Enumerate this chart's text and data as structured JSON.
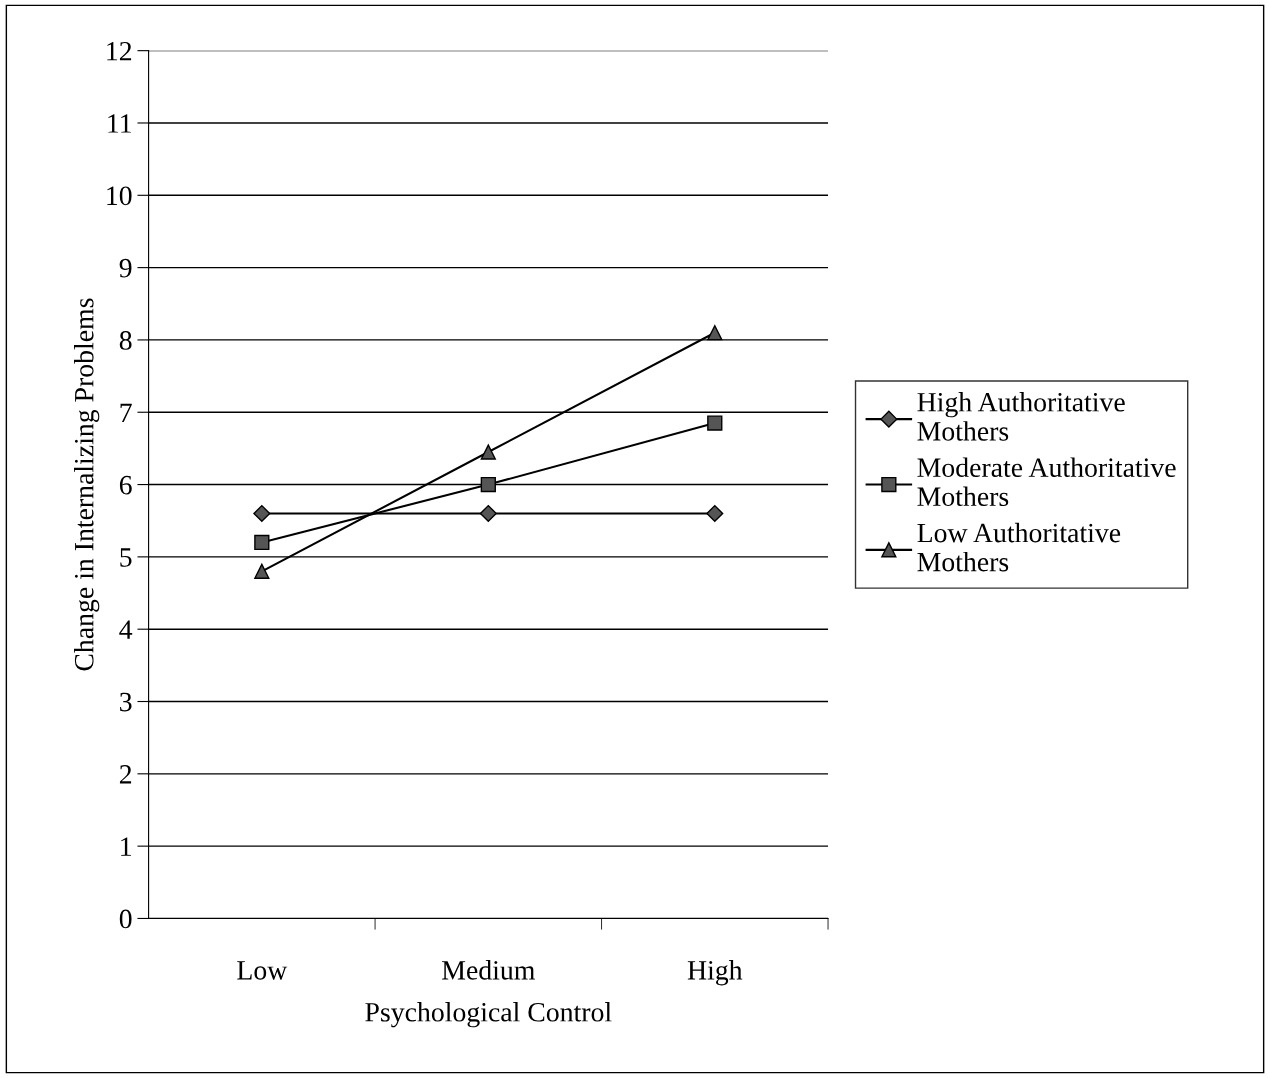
{
  "chart_data": {
    "type": "line",
    "xlabel": "Psychological Control",
    "ylabel": "Change in Internalizing Problems",
    "categories": [
      "Low",
      "Medium",
      "High"
    ],
    "series": [
      {
        "name": "High Authoritative Mothers",
        "color": "#000000",
        "marker": "diamond",
        "values": [
          5.6,
          5.6,
          5.6
        ]
      },
      {
        "name": "Moderate Authoritative Mothers",
        "color": "#000000",
        "marker": "square",
        "values": [
          5.2,
          6.0,
          6.85
        ]
      },
      {
        "name": "Low Authoritative Mothers",
        "color": "#000000",
        "marker": "triangle",
        "values": [
          4.8,
          6.45,
          8.1
        ]
      }
    ],
    "ylim": [
      0,
      12
    ],
    "yticks": [
      0,
      1,
      2,
      3,
      4,
      5,
      6,
      7,
      8,
      9,
      10,
      11,
      12
    ],
    "grid": "y",
    "legend": "right",
    "line_style": "solid"
  }
}
